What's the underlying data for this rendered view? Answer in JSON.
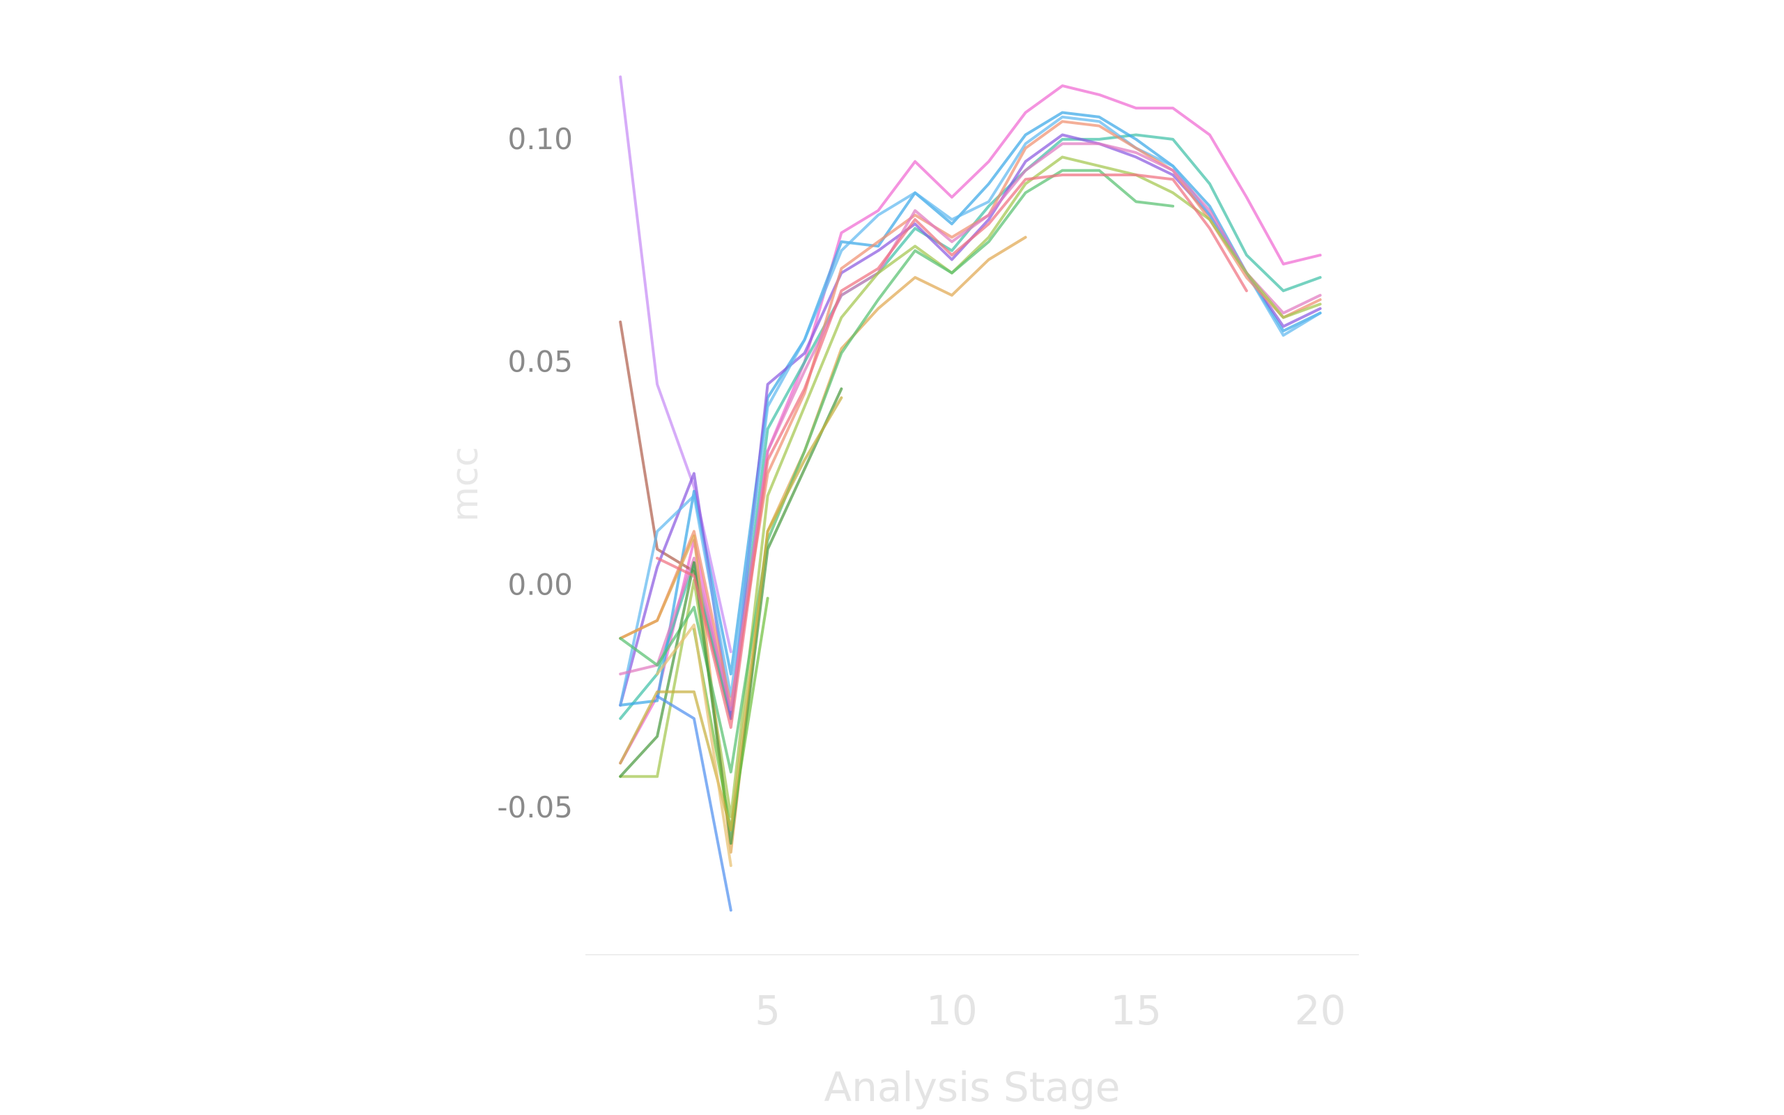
{
  "chart_data": {
    "type": "line",
    "title": "",
    "xlabel": "Analysis Stage",
    "ylabel": "mcc",
    "xlim": [
      0.05,
      21.05
    ],
    "ylim": [
      -0.083,
      0.125
    ],
    "x_ticks": [
      5,
      10,
      15,
      20
    ],
    "x_tick_labels": [
      "5",
      "10",
      "15",
      "20"
    ],
    "y_ticks": [
      -0.05,
      0,
      0.05,
      0.1
    ],
    "y_tick_labels": [
      "-0.05",
      "0.00",
      "0.05",
      "0.10"
    ],
    "grid": false,
    "legend": "none",
    "series": [
      {
        "color": "#f06ad2",
        "x": [
          1,
          2,
          3,
          4,
          5,
          6,
          7,
          8,
          9,
          10,
          11,
          12,
          13,
          14,
          15,
          16,
          17,
          18,
          19,
          20
        ],
        "y": [
          -0.04,
          -0.025,
          0.01,
          -0.03,
          0.03,
          0.05,
          0.079,
          0.084,
          0.095,
          0.087,
          0.095,
          0.106,
          0.112,
          0.11,
          0.107,
          0.107,
          0.101,
          0.087,
          0.072,
          0.074
        ]
      },
      {
        "color": "#c68cf5",
        "x": [
          1,
          2,
          3,
          4
        ],
        "y": [
          0.114,
          0.045,
          0.022,
          -0.015
        ]
      },
      {
        "color": "#b0604e",
        "x": [
          1,
          2,
          3,
          4
        ],
        "y": [
          0.059,
          0.008,
          0.003,
          -0.03
        ]
      },
      {
        "color": "#40c0a8",
        "x": [
          1,
          2,
          3,
          4,
          5,
          6,
          7,
          8,
          9,
          10,
          11,
          12,
          13,
          14,
          15,
          16,
          17,
          18,
          19,
          20
        ],
        "y": [
          -0.03,
          -0.02,
          0.005,
          -0.03,
          0.035,
          0.05,
          0.065,
          0.07,
          0.08,
          0.075,
          0.085,
          0.093,
          0.1,
          0.1,
          0.101,
          0.1,
          0.09,
          0.074,
          0.066,
          0.069
        ]
      },
      {
        "color": "#3aa8e8",
        "x": [
          1,
          2,
          3,
          4,
          5,
          6,
          7,
          8,
          9,
          10,
          11,
          12,
          13,
          14,
          15,
          16,
          17,
          18,
          19,
          20
        ],
        "y": [
          -0.027,
          -0.026,
          0.021,
          -0.02,
          0.042,
          0.055,
          0.077,
          0.076,
          0.088,
          0.081,
          0.09,
          0.101,
          0.106,
          0.105,
          0.1,
          0.094,
          0.085,
          0.07,
          0.057,
          0.061
        ]
      },
      {
        "color": "#8a5ae0",
        "x": [
          1,
          2,
          3,
          4,
          5,
          6,
          7,
          8,
          9,
          10,
          11,
          12,
          13,
          14,
          15,
          16,
          17,
          18,
          19,
          20
        ],
        "y": [
          -0.027,
          0.004,
          0.025,
          -0.03,
          0.045,
          0.052,
          0.07,
          0.075,
          0.081,
          0.073,
          0.082,
          0.095,
          0.101,
          0.099,
          0.096,
          0.092,
          0.083,
          0.07,
          0.058,
          0.062
        ]
      },
      {
        "color": "#5fb8f0",
        "x": [
          1,
          2,
          3,
          4,
          5,
          6,
          7,
          8,
          9,
          10,
          11,
          12,
          13,
          14,
          15,
          16,
          17,
          18,
          19,
          20
        ],
        "y": [
          -0.027,
          0.012,
          0.02,
          -0.025,
          0.04,
          0.055,
          0.075,
          0.083,
          0.088,
          0.082,
          0.086,
          0.099,
          0.105,
          0.104,
          0.098,
          0.094,
          0.083,
          0.07,
          0.056,
          0.061
        ]
      },
      {
        "color": "#f09070",
        "x": [
          1,
          2,
          3,
          4,
          5,
          6,
          7,
          8,
          9,
          10,
          11,
          12,
          13,
          14,
          15,
          16,
          17,
          18,
          19,
          20
        ],
        "y": [
          -0.012,
          -0.008,
          0.012,
          -0.027,
          0.025,
          0.043,
          0.071,
          0.077,
          0.083,
          0.078,
          0.083,
          0.098,
          0.104,
          0.103,
          0.098,
          0.093,
          0.082,
          0.069,
          0.06,
          0.064
        ]
      },
      {
        "color": "#e07ac0",
        "x": [
          1,
          2,
          3,
          4,
          5,
          6,
          7,
          8,
          9,
          10,
          11,
          12,
          13,
          14,
          15,
          16,
          17,
          18,
          19,
          20
        ],
        "y": [
          -0.02,
          -0.018,
          0.006,
          -0.028,
          0.03,
          0.048,
          0.065,
          0.07,
          0.084,
          0.077,
          0.083,
          0.093,
          0.099,
          0.099,
          0.097,
          0.093,
          0.084,
          0.07,
          0.061,
          0.065
        ]
      },
      {
        "color": "#a3c64e",
        "x": [
          1,
          2,
          3,
          4,
          5,
          6,
          7,
          8,
          9,
          10,
          11,
          12,
          13,
          14,
          15,
          16,
          17,
          18,
          19,
          20
        ],
        "y": [
          -0.043,
          -0.043,
          0.001,
          -0.052,
          0.02,
          0.04,
          0.06,
          0.07,
          0.076,
          0.07,
          0.078,
          0.09,
          0.096,
          0.094,
          0.092,
          0.088,
          0.082,
          0.07,
          0.06,
          0.063
        ]
      },
      {
        "color": "#e0a850",
        "x": [
          1,
          2,
          3,
          4,
          5,
          6,
          7,
          8,
          9,
          10,
          11,
          12
        ],
        "y": [
          -0.012,
          -0.008,
          0.011,
          -0.06,
          0.012,
          0.03,
          0.053,
          0.062,
          0.069,
          0.065,
          0.073,
          0.078
        ]
      },
      {
        "color": "#58c070",
        "x": [
          1,
          2,
          3,
          4,
          5,
          6,
          7,
          8,
          9,
          10,
          11,
          12,
          13,
          14,
          15,
          16
        ],
        "y": [
          -0.012,
          -0.018,
          -0.005,
          -0.042,
          0.01,
          0.03,
          0.052,
          0.064,
          0.075,
          0.07,
          0.077,
          0.088,
          0.093,
          0.093,
          0.086,
          0.085
        ]
      },
      {
        "color": "#4a9a40",
        "x": [
          1,
          2,
          3,
          4,
          5,
          6,
          7
        ],
        "y": [
          -0.043,
          -0.034,
          0.005,
          -0.058,
          0.008,
          0.026,
          0.044
        ]
      },
      {
        "color": "#70c040",
        "x": [
          3,
          4,
          5
        ],
        "y": [
          -0.01,
          -0.055,
          -0.003
        ]
      },
      {
        "color": "#c8b040",
        "x": [
          1,
          2,
          3,
          4,
          5,
          6,
          7
        ],
        "y": [
          -0.04,
          -0.024,
          -0.024,
          -0.055,
          0.012,
          0.028,
          0.042
        ]
      },
      {
        "color": "#e8c070",
        "x": [
          2,
          3,
          4
        ],
        "y": [
          -0.02,
          -0.009,
          -0.063
        ]
      },
      {
        "color": "#5090f0",
        "x": [
          2,
          3,
          4
        ],
        "y": [
          -0.025,
          -0.03,
          -0.073
        ]
      },
      {
        "color": "#f07080",
        "x": [
          2,
          3,
          4,
          5,
          6,
          7,
          8,
          9,
          10,
          11,
          12,
          13,
          14,
          15,
          16,
          17,
          18
        ],
        "y": [
          0.006,
          0.002,
          -0.032,
          0.028,
          0.044,
          0.066,
          0.071,
          0.082,
          0.074,
          0.081,
          0.091,
          0.092,
          0.092,
          0.092,
          0.091,
          0.08,
          0.066
        ]
      }
    ]
  }
}
